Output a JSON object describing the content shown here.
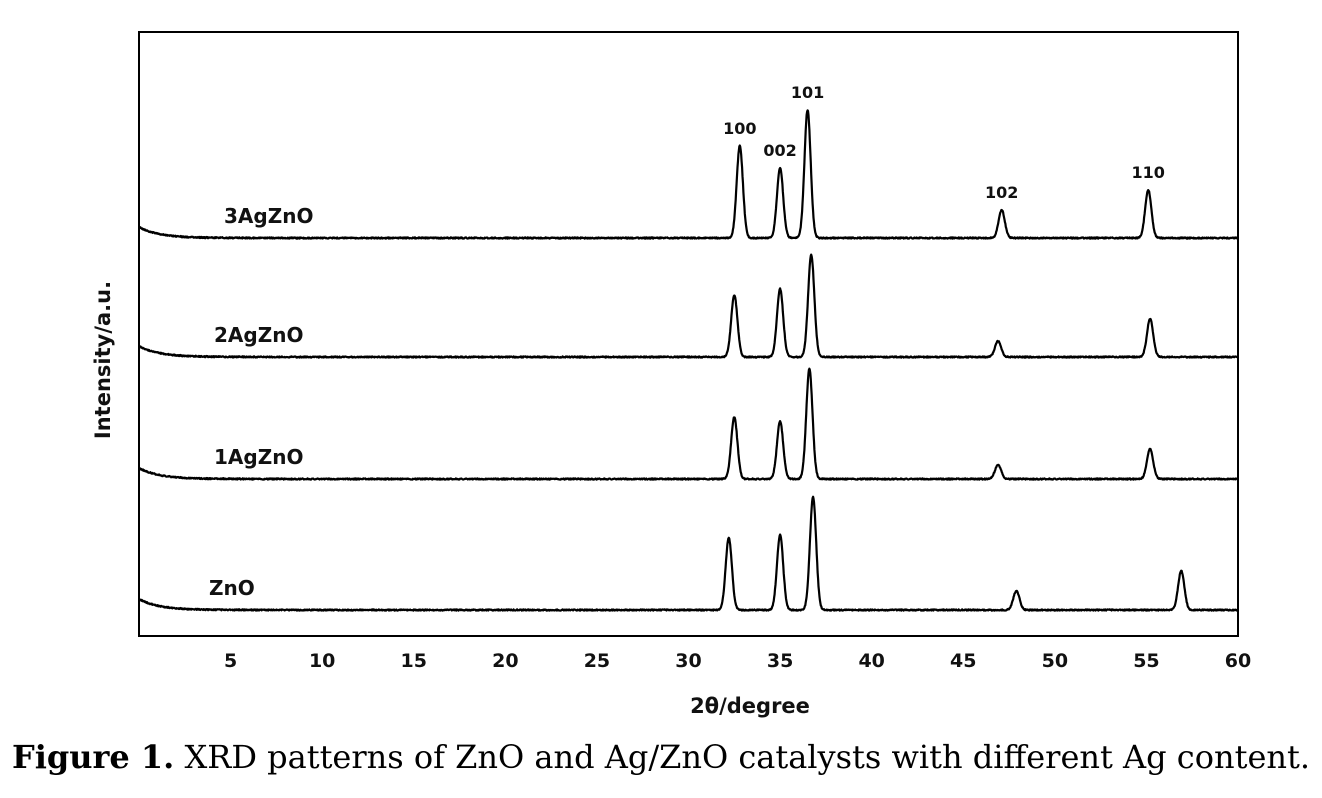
{
  "caption": {
    "label": "Figure 1.",
    "text": "XRD patterns of ZnO and Ag/ZnO catalysts with different Ag content."
  },
  "chart_data": {
    "type": "line",
    "title": "",
    "xlabel": "2θ/degree",
    "ylabel": "Intensity/a.u.",
    "xlim": [
      0,
      60
    ],
    "xticks": [
      5,
      10,
      15,
      20,
      25,
      30,
      35,
      40,
      45,
      50,
      55,
      60
    ],
    "grid": false,
    "legend": "none",
    "series": [
      {
        "name": "3AgZnO",
        "baseline": 3,
        "peaks": [
          [
            32.8,
            92
          ],
          [
            35.0,
            70
          ],
          [
            36.5,
            128
          ],
          [
            47.1,
            28
          ],
          [
            55.1,
            48
          ]
        ]
      },
      {
        "name": "2AgZnO",
        "baseline": 2,
        "peaks": [
          [
            32.5,
            62
          ],
          [
            35.0,
            68
          ],
          [
            36.7,
            102
          ],
          [
            46.9,
            16
          ],
          [
            55.2,
            38
          ]
        ]
      },
      {
        "name": "1AgZnO",
        "baseline": 1,
        "peaks": [
          [
            32.5,
            62
          ],
          [
            35.0,
            58
          ],
          [
            36.6,
            110
          ],
          [
            46.9,
            14
          ],
          [
            55.2,
            30
          ]
        ]
      },
      {
        "name": "ZnO",
        "baseline": 0,
        "peaks": [
          [
            32.2,
            72
          ],
          [
            35.0,
            75
          ],
          [
            36.8,
            113
          ],
          [
            47.9,
            19
          ],
          [
            56.9,
            39
          ]
        ]
      }
    ],
    "peak_labels": [
      {
        "text": "100",
        "x": 32.8
      },
      {
        "text": "002",
        "x": 35.0
      },
      {
        "text": "101",
        "x": 36.5
      },
      {
        "text": "102",
        "x": 47.1
      },
      {
        "text": "110",
        "x": 55.1
      }
    ]
  }
}
